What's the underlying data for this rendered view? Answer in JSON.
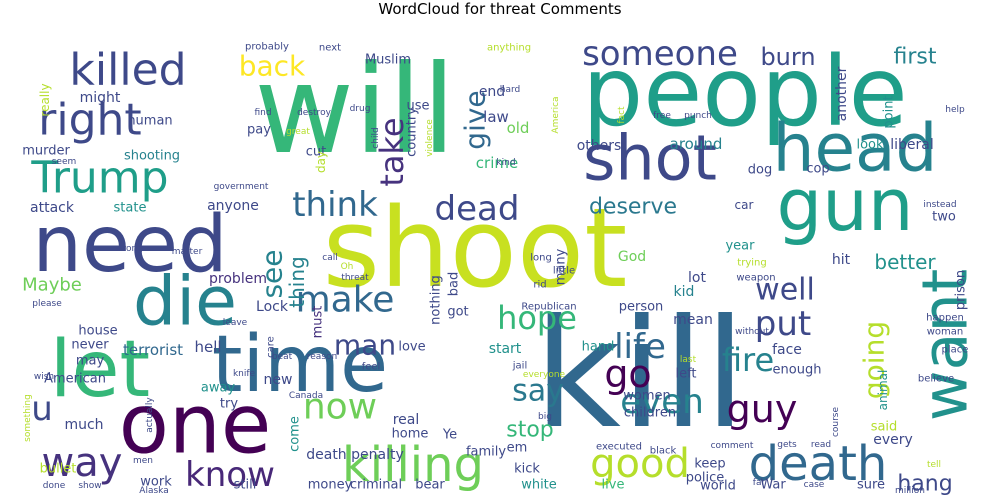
{
  "title": "WordCloud for threat Comments",
  "words": [
    {
      "text": "will",
      "color": "#35b779"
    },
    {
      "text": "people",
      "color": "#1f9e89"
    },
    {
      "text": "shoot",
      "color": "#c8e020"
    },
    {
      "text": "kill",
      "color": "#31688e"
    },
    {
      "text": "let",
      "color": "#35b779"
    },
    {
      "text": "time",
      "color": "#31688e"
    },
    {
      "text": "need",
      "color": "#3e4989"
    },
    {
      "text": "one",
      "color": "#440154"
    },
    {
      "text": "die",
      "color": "#26828e"
    },
    {
      "text": "gun",
      "color": "#1f9e89"
    },
    {
      "text": "head",
      "color": "#26828e"
    },
    {
      "text": "shot",
      "color": "#3e4989"
    },
    {
      "text": "want",
      "color": "#21918c"
    },
    {
      "text": "killing",
      "color": "#6ece58"
    },
    {
      "text": "death",
      "color": "#31688e"
    },
    {
      "text": "Trump",
      "color": "#1f9e89"
    },
    {
      "text": "killed",
      "color": "#3e4989"
    },
    {
      "text": "right",
      "color": "#3e4989"
    },
    {
      "text": "someone",
      "color": "#3e4989"
    },
    {
      "text": "way",
      "color": "#46327e"
    },
    {
      "text": "good",
      "color": "#b5de2b"
    },
    {
      "text": "know",
      "color": "#482878"
    },
    {
      "text": "now",
      "color": "#6ece58"
    },
    {
      "text": "make",
      "color": "#31688e"
    },
    {
      "text": "dead",
      "color": "#3e4989"
    },
    {
      "text": "think",
      "color": "#31688e"
    },
    {
      "text": "take",
      "color": "#46327e"
    },
    {
      "text": "back",
      "color": "#fde725"
    },
    {
      "text": "guy",
      "color": "#440154"
    },
    {
      "text": "hope",
      "color": "#35b779"
    },
    {
      "text": "go",
      "color": "#440154"
    },
    {
      "text": "say",
      "color": "#2a788e"
    },
    {
      "text": "even",
      "color": "#26828e"
    },
    {
      "text": "fire",
      "color": "#26828e"
    },
    {
      "text": "put",
      "color": "#3e4989"
    },
    {
      "text": "life",
      "color": "#31688e"
    },
    {
      "text": "well",
      "color": "#3e4989"
    },
    {
      "text": "going",
      "color": "#b5de2b"
    },
    {
      "text": "give",
      "color": "#31688e"
    },
    {
      "text": "see",
      "color": "#26828e"
    },
    {
      "text": "man",
      "color": "#3e4989"
    },
    {
      "text": "u",
      "color": "#3e4989"
    },
    {
      "text": "burn",
      "color": "#3e4989"
    },
    {
      "text": "first",
      "color": "#26828e"
    },
    {
      "text": "deserve",
      "color": "#2a788e"
    },
    {
      "text": "stop",
      "color": "#35b779"
    },
    {
      "text": "hang",
      "color": "#3e4989"
    },
    {
      "text": "thing",
      "color": "#26828e"
    },
    {
      "text": "better",
      "color": "#21918c"
    },
    {
      "text": "Maybe",
      "color": "#6ece58"
    },
    {
      "text": "terrorist",
      "color": "#31688e"
    },
    {
      "text": "might",
      "color": "#3e4989"
    },
    {
      "text": "Muslim",
      "color": "#3e4989"
    },
    {
      "text": "attack",
      "color": "#3e4989"
    },
    {
      "text": "murder",
      "color": "#3e4989"
    },
    {
      "text": "shooting",
      "color": "#26828e"
    },
    {
      "text": "human",
      "color": "#3e4989"
    },
    {
      "text": "state",
      "color": "#21918c"
    },
    {
      "text": "crime",
      "color": "#35b779"
    },
    {
      "text": "law",
      "color": "#3e4989"
    },
    {
      "text": "old",
      "color": "#6ece58"
    },
    {
      "text": "end",
      "color": "#3e4989"
    },
    {
      "text": "country",
      "color": "#3e4989"
    },
    {
      "text": "around",
      "color": "#26828e"
    },
    {
      "text": "others",
      "color": "#3e4989"
    },
    {
      "text": "liberal",
      "color": "#3e4989"
    },
    {
      "text": "another",
      "color": "#3e4989"
    },
    {
      "text": "point",
      "color": "#21918c"
    },
    {
      "text": "look",
      "color": "#21918c"
    },
    {
      "text": "cop",
      "color": "#3e4989"
    },
    {
      "text": "dog",
      "color": "#3e4989"
    },
    {
      "text": "anyone",
      "color": "#3e4989"
    },
    {
      "text": "problem",
      "color": "#46327e"
    },
    {
      "text": "hell",
      "color": "#3e4989"
    },
    {
      "text": "Lock",
      "color": "#3e4989"
    },
    {
      "text": "never",
      "color": "#3e4989"
    },
    {
      "text": "house",
      "color": "#3e4989"
    },
    {
      "text": "American",
      "color": "#3e4989"
    },
    {
      "text": "must",
      "color": "#46327e"
    },
    {
      "text": "bad",
      "color": "#3e4989"
    },
    {
      "text": "got",
      "color": "#3e4989"
    },
    {
      "text": "nothing",
      "color": "#3e4989"
    },
    {
      "text": "God",
      "color": "#6ece58"
    },
    {
      "text": "kid",
      "color": "#26828e"
    },
    {
      "text": "lot",
      "color": "#3e4989"
    },
    {
      "text": "person",
      "color": "#3e4989"
    },
    {
      "text": "mean",
      "color": "#3e4989"
    },
    {
      "text": "hit",
      "color": "#3e4989"
    },
    {
      "text": "face",
      "color": "#3e4989"
    },
    {
      "text": "year",
      "color": "#21918c"
    },
    {
      "text": "two",
      "color": "#3e4989"
    },
    {
      "text": "prison",
      "color": "#3e4989"
    },
    {
      "text": "many",
      "color": "#3e4989"
    },
    {
      "text": "love",
      "color": "#3e4989"
    },
    {
      "text": "start",
      "color": "#21918c"
    },
    {
      "text": "hand",
      "color": "#21918c"
    },
    {
      "text": "left",
      "color": "#3e4989"
    },
    {
      "text": "enough",
      "color": "#3e4989"
    },
    {
      "text": "animal",
      "color": "#21918c"
    },
    {
      "text": "women",
      "color": "#3e4989"
    },
    {
      "text": "children",
      "color": "#3e4989"
    },
    {
      "text": "new",
      "color": "#3e4989"
    },
    {
      "text": "away",
      "color": "#21918c"
    },
    {
      "text": "try",
      "color": "#3e4989"
    },
    {
      "text": "much",
      "color": "#3e4989"
    },
    {
      "text": "may",
      "color": "#3e4989"
    },
    {
      "text": "real",
      "color": "#3e4989"
    },
    {
      "text": "home",
      "color": "#3e4989"
    },
    {
      "text": "death penalty",
      "color": "#3e4989"
    },
    {
      "text": "come",
      "color": "#21918c"
    },
    {
      "text": "still",
      "color": "#3e4989"
    },
    {
      "text": "work",
      "color": "#3e4989"
    },
    {
      "text": "money",
      "color": "#3e4989"
    },
    {
      "text": "criminal",
      "color": "#3e4989"
    },
    {
      "text": "bear",
      "color": "#3e4989"
    },
    {
      "text": "white",
      "color": "#21918c"
    },
    {
      "text": "live",
      "color": "#35b779"
    },
    {
      "text": "family",
      "color": "#3e4989"
    },
    {
      "text": "Ye",
      "color": "#3e4989"
    },
    {
      "text": "em",
      "color": "#3e4989"
    },
    {
      "text": "kick",
      "color": "#3e4989"
    },
    {
      "text": "keep",
      "color": "#3e4989"
    },
    {
      "text": "police",
      "color": "#3e4989"
    },
    {
      "text": "world",
      "color": "#3e4989"
    },
    {
      "text": "War",
      "color": "#3e4989"
    },
    {
      "text": "sure",
      "color": "#3e4989"
    },
    {
      "text": "every",
      "color": "#3e4989"
    },
    {
      "text": "said",
      "color": "#b5de2b"
    },
    {
      "text": "bullet",
      "color": "#b5de2b"
    },
    {
      "text": "cut",
      "color": "#3e4989"
    },
    {
      "text": "day",
      "color": "#b5de2b"
    },
    {
      "text": "pay",
      "color": "#3e4989"
    },
    {
      "text": "use",
      "color": "#3e4989"
    },
    {
      "text": "really",
      "color": "#b5de2b"
    },
    {
      "text": "probably",
      "color": "#3e4989"
    },
    {
      "text": "next",
      "color": "#3e4989"
    },
    {
      "text": "anything",
      "color": "#b5de2b"
    },
    {
      "text": "find",
      "color": "#3e4989"
    },
    {
      "text": "destroy",
      "color": "#3e4989"
    },
    {
      "text": "drug",
      "color": "#3e4989"
    },
    {
      "text": "hard",
      "color": "#3e4989"
    },
    {
      "text": "kind",
      "color": "#3e4989"
    },
    {
      "text": "fact",
      "color": "#b5de2b"
    },
    {
      "text": "America",
      "color": "#b5de2b"
    },
    {
      "text": "free",
      "color": "#3e4989"
    },
    {
      "text": "punch",
      "color": "#3e4989"
    },
    {
      "text": "help",
      "color": "#3e4989"
    },
    {
      "text": "instead",
      "color": "#3e4989"
    },
    {
      "text": "government",
      "color": "#3e4989"
    },
    {
      "text": "seem",
      "color": "#3e4989"
    },
    {
      "text": "great",
      "color": "#b5de2b"
    },
    {
      "text": "violence",
      "color": "#b5de2b"
    },
    {
      "text": "child",
      "color": "#3e4989"
    },
    {
      "text": "car",
      "color": "#3e4989"
    },
    {
      "text": "wrong",
      "color": "#3e4989"
    },
    {
      "text": "matter",
      "color": "#3e4989"
    },
    {
      "text": "call",
      "color": "#3e4989"
    },
    {
      "text": "Oh",
      "color": "#b5de2b"
    },
    {
      "text": "threat",
      "color": "#3e4989"
    },
    {
      "text": "rid",
      "color": "#3e4989"
    },
    {
      "text": "long",
      "color": "#3e4989"
    },
    {
      "text": "little",
      "color": "#3e4989"
    },
    {
      "text": "trying",
      "color": "#b5de2b"
    },
    {
      "text": "weapon",
      "color": "#3e4989"
    },
    {
      "text": "please",
      "color": "#3e4989"
    },
    {
      "text": "leave",
      "color": "#3e4989"
    },
    {
      "text": "Republican",
      "color": "#3e4989"
    },
    {
      "text": "without",
      "color": "#3e4989"
    },
    {
      "text": "happen",
      "color": "#3e4989"
    },
    {
      "text": "woman",
      "color": "#3e4989"
    },
    {
      "text": "place",
      "color": "#3e4989"
    },
    {
      "text": "believe",
      "color": "#3e4989"
    },
    {
      "text": "care",
      "color": "#3e4989"
    },
    {
      "text": "beat",
      "color": "#3e4989"
    },
    {
      "text": "reason",
      "color": "#3e4989"
    },
    {
      "text": "wish",
      "color": "#3e4989"
    },
    {
      "text": "knife",
      "color": "#3e4989"
    },
    {
      "text": "feel",
      "color": "#3e4989"
    },
    {
      "text": "Canada",
      "color": "#3e4989"
    },
    {
      "text": "jail",
      "color": "#3e4989"
    },
    {
      "text": "last",
      "color": "#b5de2b"
    },
    {
      "text": "everyone",
      "color": "#b5de2b"
    },
    {
      "text": "actually",
      "color": "#3e4989"
    },
    {
      "text": "big",
      "color": "#3e4989"
    },
    {
      "text": "something",
      "color": "#b5de2b"
    },
    {
      "text": "men",
      "color": "#3e4989"
    },
    {
      "text": "Alaska",
      "color": "#3e4989"
    },
    {
      "text": "done",
      "color": "#3e4989"
    },
    {
      "text": "show",
      "color": "#3e4989"
    },
    {
      "text": "executed",
      "color": "#3e4989"
    },
    {
      "text": "black",
      "color": "#3e4989"
    },
    {
      "text": "comment",
      "color": "#3e4989"
    },
    {
      "text": "gets",
      "color": "#3e4989"
    },
    {
      "text": "read",
      "color": "#3e4989"
    },
    {
      "text": "far",
      "color": "#3e4989"
    },
    {
      "text": "case",
      "color": "#3e4989"
    },
    {
      "text": "course",
      "color": "#3e4989"
    },
    {
      "text": "tell",
      "color": "#b5de2b"
    },
    {
      "text": "million",
      "color": "#3e4989"
    }
  ]
}
